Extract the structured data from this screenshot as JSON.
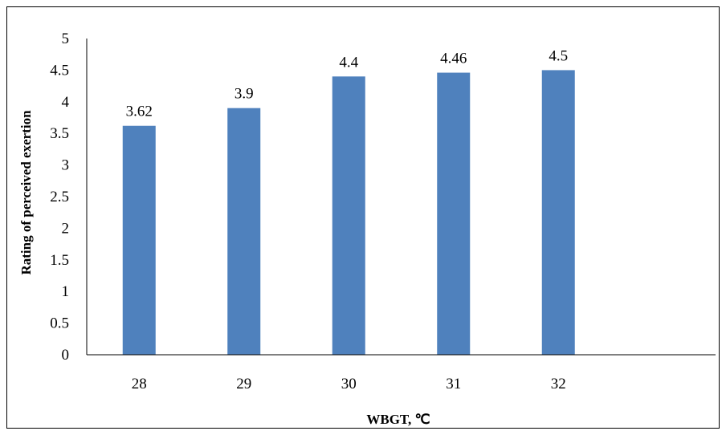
{
  "chart_data": {
    "type": "bar",
    "categories": [
      "28",
      "29",
      "30",
      "31",
      "32"
    ],
    "values": [
      3.62,
      3.9,
      4.4,
      4.46,
      4.5
    ],
    "data_labels": [
      "3.62",
      "3.9",
      "4.4",
      "4.46",
      "4.5"
    ],
    "title": "",
    "xlabel": "WBGT, ℃",
    "ylabel": "Rating of perceived exertion",
    "ylim": [
      0,
      5
    ],
    "yticks": [
      "0",
      "0.5",
      "1",
      "1.5",
      "2",
      "2.5",
      "3",
      "3.5",
      "4",
      "4.5",
      "5"
    ],
    "bar_color": "#4F81BD",
    "grid": false,
    "legend": "none"
  }
}
